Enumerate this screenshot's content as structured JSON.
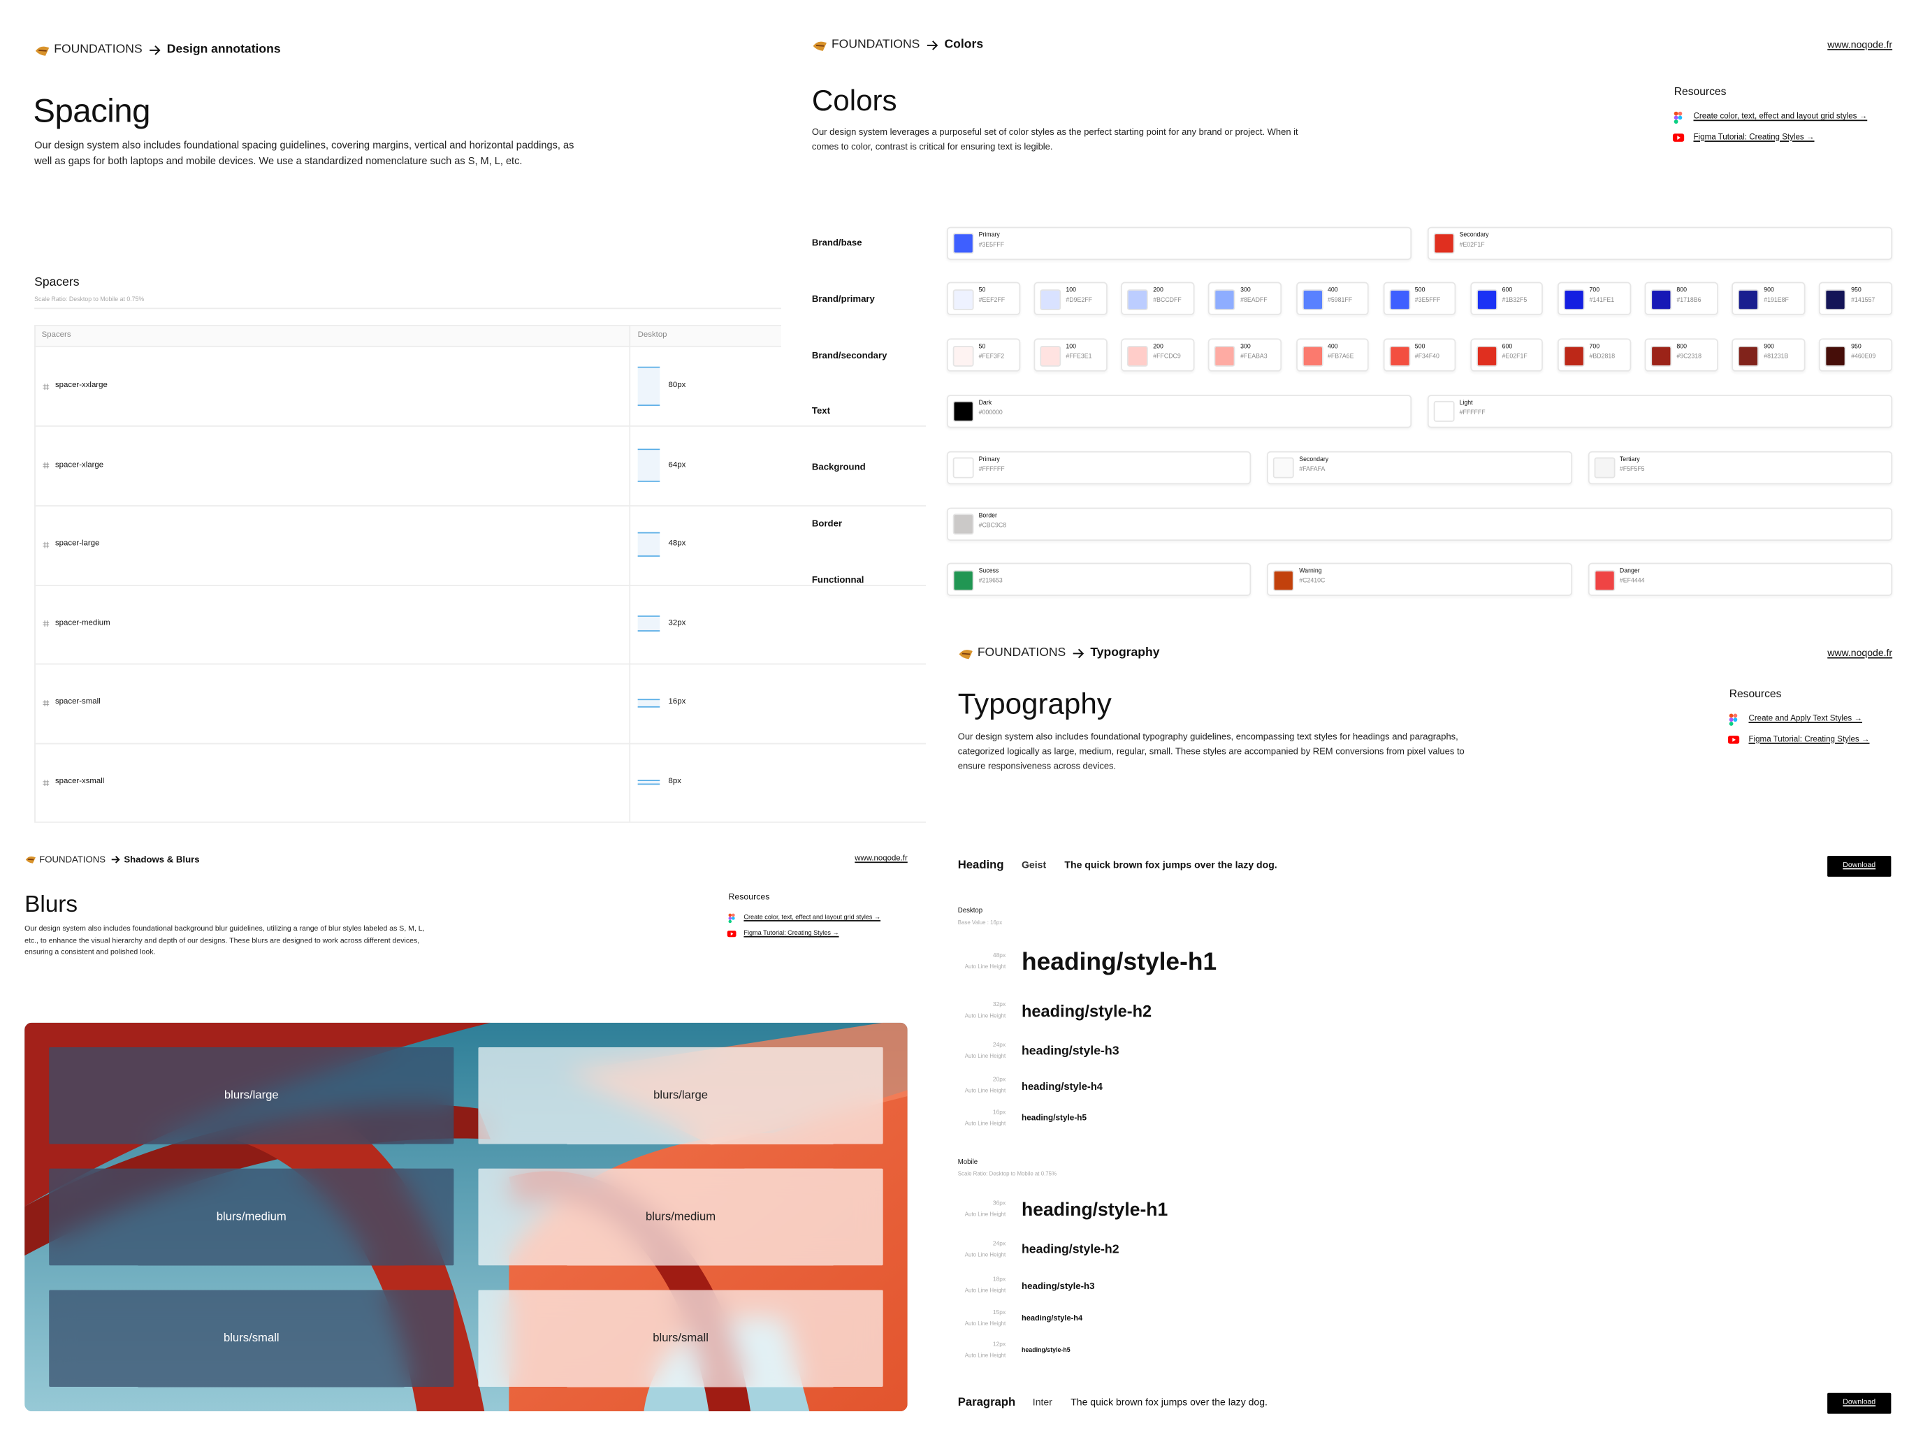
{
  "spacing": {
    "breadcrumb": {
      "section": "FOUNDATIONS",
      "page": "Design annotations"
    },
    "title": "Spacing",
    "description": "Our design system also includes foundational spacing guidelines, covering margins, vertical and horizontal paddings, as well as gaps for both laptops and mobile devices. We use a standardized nomenclature such as S, M, L, etc.",
    "table": {
      "title": "Spacers",
      "note": "Scale Ratio: Desktop to Mobile at 0.75%",
      "columns": [
        "Spacers",
        "Desktop"
      ],
      "rows": [
        {
          "name": "spacer-xxlarge",
          "size": {
            "value": 80,
            "label": "80px"
          }
        },
        {
          "name": "spacer-xlarge",
          "size": {
            "value": 64,
            "label": "64px"
          }
        },
        {
          "name": "spacer-large",
          "size": {
            "value": 48,
            "label": "48px"
          }
        },
        {
          "name": "spacer-medium",
          "size": {
            "value": 32,
            "label": "32px"
          }
        },
        {
          "name": "spacer-small",
          "size": {
            "value": 16,
            "label": "16px"
          }
        },
        {
          "name": "spacer-xsmall",
          "size": {
            "value": 8,
            "label": "8px"
          }
        }
      ]
    }
  },
  "colors": {
    "breadcrumb": {
      "section": "FOUNDATIONS",
      "page": "Colors"
    },
    "link": "www.noqode.fr",
    "title": "Colors",
    "description": "Our design system leverages a purposeful set of color styles as the perfect starting point for any brand or project. When it comes to color, contrast is critical for ensuring text is legible.",
    "resources": {
      "title": "Resources",
      "links": [
        "Create color, text, effect and layout grid styles →",
        "Figma Tutorial: Creating Styles →"
      ]
    },
    "groups": [
      {
        "label": "Brand/base",
        "swatches": [
          {
            "name": "Primary",
            "hex": "#3E5FFF"
          },
          {
            "name": "Secondary",
            "hex": "#E02F1F"
          }
        ]
      },
      {
        "label": "Brand/primary",
        "swatches": [
          {
            "name": "50",
            "hex": "#EEF2FF"
          },
          {
            "name": "100",
            "hex": "#D9E2FF"
          },
          {
            "name": "200",
            "hex": "#BCCDFF"
          },
          {
            "name": "300",
            "hex": "#8EADFF"
          },
          {
            "name": "400",
            "hex": "#5981FF"
          },
          {
            "name": "500",
            "hex": "#3E5FFF"
          },
          {
            "name": "600",
            "hex": "#1B32F5"
          },
          {
            "name": "700",
            "hex": "#141FE1"
          },
          {
            "name": "800",
            "hex": "#1718B6"
          },
          {
            "name": "900",
            "hex": "#191E8F"
          },
          {
            "name": "950",
            "hex": "#141557"
          }
        ]
      },
      {
        "label": "Brand/secondary",
        "swatches": [
          {
            "name": "50",
            "hex": "#FEF3F2"
          },
          {
            "name": "100",
            "hex": "#FFE3E1"
          },
          {
            "name": "200",
            "hex": "#FFCDC9"
          },
          {
            "name": "300",
            "hex": "#FEABA3"
          },
          {
            "name": "400",
            "hex": "#FB7A6E"
          },
          {
            "name": "500",
            "hex": "#F34F40"
          },
          {
            "name": "600",
            "hex": "#E02F1F"
          },
          {
            "name": "700",
            "hex": "#BD2818"
          },
          {
            "name": "800",
            "hex": "#9C2318"
          },
          {
            "name": "900",
            "hex": "#81231B"
          },
          {
            "name": "950",
            "hex": "#460E09"
          }
        ]
      },
      {
        "label": "Text",
        "swatches": [
          {
            "name": "Dark",
            "hex": "#000000"
          },
          {
            "name": "Light",
            "hex": "#FFFFFF"
          }
        ]
      },
      {
        "label": "Background",
        "swatches": [
          {
            "name": "Primary",
            "hex": "#FFFFFF"
          },
          {
            "name": "Secondary",
            "hex": "#FAFAFA"
          },
          {
            "name": "Tertiary",
            "hex": "#F5F5F5"
          }
        ]
      },
      {
        "label": "Border",
        "swatches": [
          {
            "name": "Border",
            "hex": "#CBC9C8"
          }
        ]
      },
      {
        "label": "Functionnal",
        "swatches": [
          {
            "name": "Sucess",
            "hex": "#219653"
          },
          {
            "name": "Warning",
            "hex": "#C2410C"
          },
          {
            "name": "Danger",
            "hex": "#EF4444"
          }
        ]
      }
    ]
  },
  "typography": {
    "breadcrumb": {
      "section": "FOUNDATIONS",
      "page": "Typography"
    },
    "link": "www.noqode.fr",
    "title": "Typography",
    "description": "Our design system also includes foundational typography guidelines, encompassing text styles for headings and paragraphs, categorized logically as large, medium, regular, small. These styles are accompanied by REM conversions from pixel values to ensure responsiveness across devices.",
    "resources": {
      "title": "Resources",
      "links": [
        "Create and Apply Text Styles →",
        "Figma Tutorial: Creating Styles →"
      ]
    },
    "specimens": [
      {
        "label": "Heading",
        "font": "Geist",
        "sample": "The quick brown fox jumps over the lazy dog.",
        "button": "Download"
      },
      {
        "label": "Paragraph",
        "font": "Inter",
        "sample": "The quick brown fox jumps over the lazy dog.",
        "button": "Download"
      }
    ],
    "sections": [
      {
        "title": "Desktop",
        "note": "Base Value : 16px",
        "styles": [
          {
            "size": {
              "value": 48,
              "label": "48px"
            },
            "line_height": "Auto Line Height",
            "name": "heading/style-h1"
          },
          {
            "size": {
              "value": 32,
              "label": "32px"
            },
            "line_height": "Auto Line Height",
            "name": "heading/style-h2"
          },
          {
            "size": {
              "value": 24,
              "label": "24px"
            },
            "line_height": "Auto Line Height",
            "name": "heading/style-h3"
          },
          {
            "size": {
              "value": 20,
              "label": "20px"
            },
            "line_height": "Auto Line Height",
            "name": "heading/style-h4"
          },
          {
            "size": {
              "value": 16,
              "label": "16px"
            },
            "line_height": "Auto Line Height",
            "name": "heading/style-h5"
          }
        ]
      },
      {
        "title": "Mobile",
        "note": "Scale Ratio: Desktop to Mobile at 0.75%",
        "styles": [
          {
            "size": {
              "value": 36,
              "label": "36px"
            },
            "line_height": "Auto Line Height",
            "name": "heading/style-h1"
          },
          {
            "size": {
              "value": 24,
              "label": "24px"
            },
            "line_height": "Auto Line Height",
            "name": "heading/style-h2"
          },
          {
            "size": {
              "value": 18,
              "label": "18px"
            },
            "line_height": "Auto Line Height",
            "name": "heading/style-h3"
          },
          {
            "size": {
              "value": 15,
              "label": "15px"
            },
            "line_height": "Auto Line Height",
            "name": "heading/style-h4"
          },
          {
            "size": {
              "value": 12,
              "label": "12px"
            },
            "line_height": "Auto Line Height",
            "name": "heading/style-h5"
          }
        ]
      }
    ]
  },
  "blurs": {
    "breadcrumb": {
      "section": "FOUNDATIONS",
      "page": "Shadows & Blurs"
    },
    "link": "www.noqode.fr",
    "title": "Blurs",
    "description": "Our design system also includes foundational background blur guidelines, utilizing a range of blur styles labeled as S, M, L, etc., to enhance the visual hierarchy and depth of our designs. These blurs are designed to work across different devices, ensuring a consistent and polished look.",
    "resources": {
      "title": "Resources",
      "links": [
        "Create color, text, effect and layout grid styles →",
        "Figma Tutorial: Creating Styles →"
      ]
    },
    "tiles": [
      "blurs/large",
      "blurs/large",
      "blurs/medium",
      "blurs/medium",
      "blurs/small",
      "blurs/small"
    ]
  }
}
